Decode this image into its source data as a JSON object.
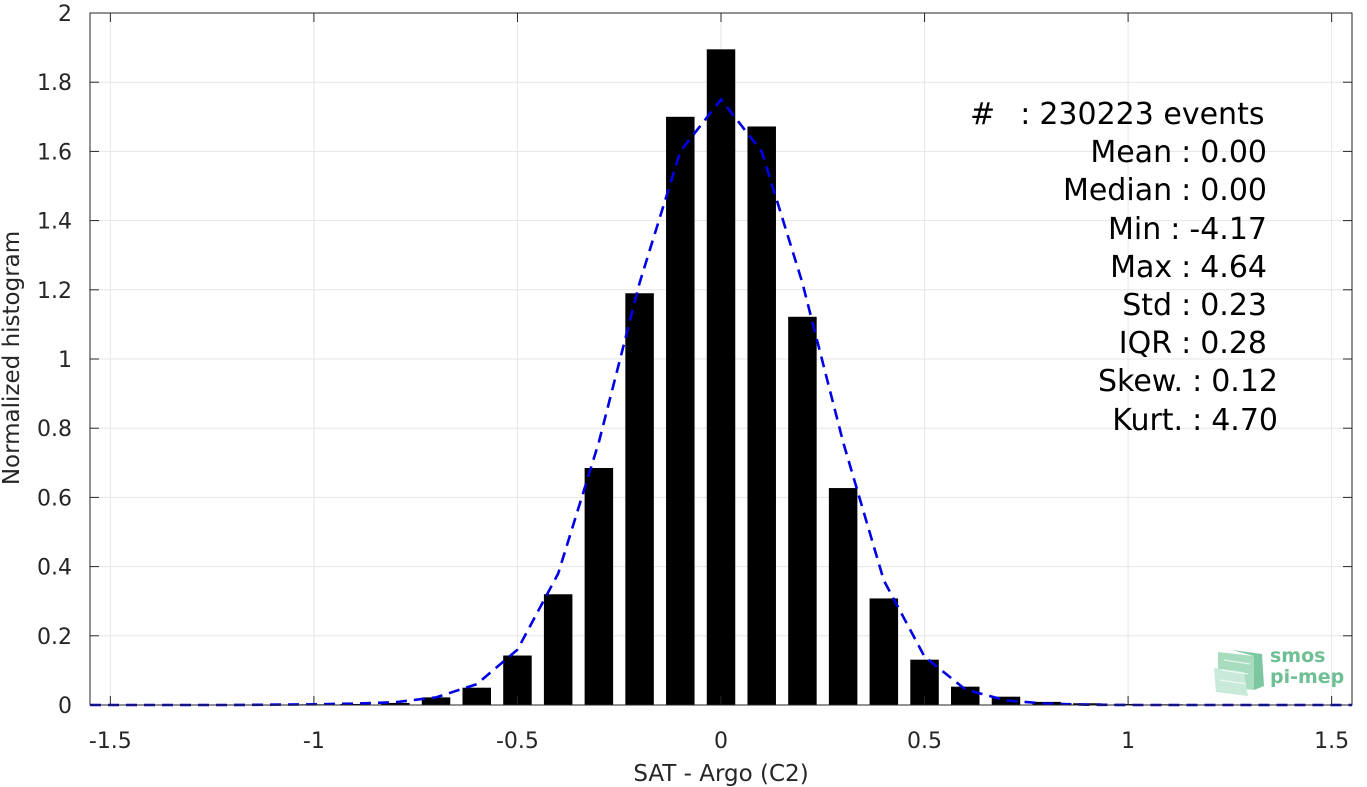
{
  "chart_data": {
    "type": "bar",
    "xlabel": "SAT - Argo (C2)",
    "ylabel": "Normalized histogram",
    "xlim": [
      -1.55,
      1.55
    ],
    "ylim": [
      0,
      2
    ],
    "grid": true,
    "xticks": [
      "-1.5",
      "-1",
      "-0.5",
      "0",
      "0.5",
      "1",
      "1.5"
    ],
    "xtick_values": [
      -1.5,
      -1,
      -0.5,
      0,
      0.5,
      1,
      1.5
    ],
    "yticks": [
      "0",
      "0.2",
      "0.4",
      "0.6",
      "0.8",
      "1",
      "1.2",
      "1.4",
      "1.6",
      "1.8",
      "2"
    ],
    "ytick_values": [
      0,
      0.2,
      0.4,
      0.6,
      0.8,
      1,
      1.2,
      1.4,
      1.6,
      1.8,
      2
    ],
    "bar_color": "#000000",
    "bars": {
      "x": [
        -1.5,
        -1.4,
        -1.3,
        -1.2,
        -1.1,
        -1.0,
        -0.9,
        -0.8,
        -0.7,
        -0.6,
        -0.5,
        -0.4,
        -0.3,
        -0.2,
        -0.1,
        0.0,
        0.1,
        0.2,
        0.3,
        0.4,
        0.5,
        0.6,
        0.7,
        0.8,
        0.9,
        1.0,
        1.1,
        1.2,
        1.3,
        1.4,
        1.5
      ],
      "values": [
        0.001,
        0.001,
        0.001,
        0.001,
        0.001,
        0.002,
        0.003,
        0.006,
        0.022,
        0.05,
        0.143,
        0.32,
        0.685,
        1.19,
        1.7,
        1.895,
        1.672,
        1.122,
        0.627,
        0.308,
        0.131,
        0.053,
        0.024,
        0.009,
        0.005,
        0.003,
        0.002,
        0.001,
        0.001,
        0.001,
        0.001
      ]
    },
    "fit_curve": {
      "style": "dashed",
      "color": "#0000e6",
      "x": [
        -1.55,
        -1.4,
        -1.2,
        -1.0,
        -0.9,
        -0.8,
        -0.7,
        -0.6,
        -0.5,
        -0.4,
        -0.3,
        -0.2,
        -0.1,
        0.0,
        0.1,
        0.2,
        0.3,
        0.4,
        0.5,
        0.6,
        0.7,
        0.8,
        0.9,
        1.0,
        1.2,
        1.4,
        1.55
      ],
      "y": [
        0.0,
        0.0,
        0.0,
        0.002,
        0.004,
        0.008,
        0.022,
        0.06,
        0.16,
        0.38,
        0.76,
        1.22,
        1.6,
        1.75,
        1.6,
        1.22,
        0.76,
        0.36,
        0.14,
        0.045,
        0.013,
        0.004,
        0.001,
        0.0,
        0.0,
        0.0,
        0.0
      ]
    }
  },
  "stats": [
    {
      "label": "#  ",
      "sep": ":",
      "value": "230223 events"
    },
    {
      "label": "Mean",
      "sep": ":",
      "value": "0.00"
    },
    {
      "label": "Median",
      "sep": ":",
      "value": "0.00"
    },
    {
      "label": "Min",
      "sep": ":",
      "value": "-4.17"
    },
    {
      "label": "Max",
      "sep": ":",
      "value": "4.64"
    },
    {
      "label": "Std",
      "sep": ":",
      "value": "0.23"
    },
    {
      "label": "IQR",
      "sep": ":",
      "value": "0.28"
    },
    {
      "label": "Skew.",
      "sep": ":",
      "value": "0.12"
    },
    {
      "label": "Kurt.",
      "sep": ":",
      "value": "4.70"
    }
  ],
  "logo": {
    "line1": "smos",
    "line2": "pi-mep"
  }
}
